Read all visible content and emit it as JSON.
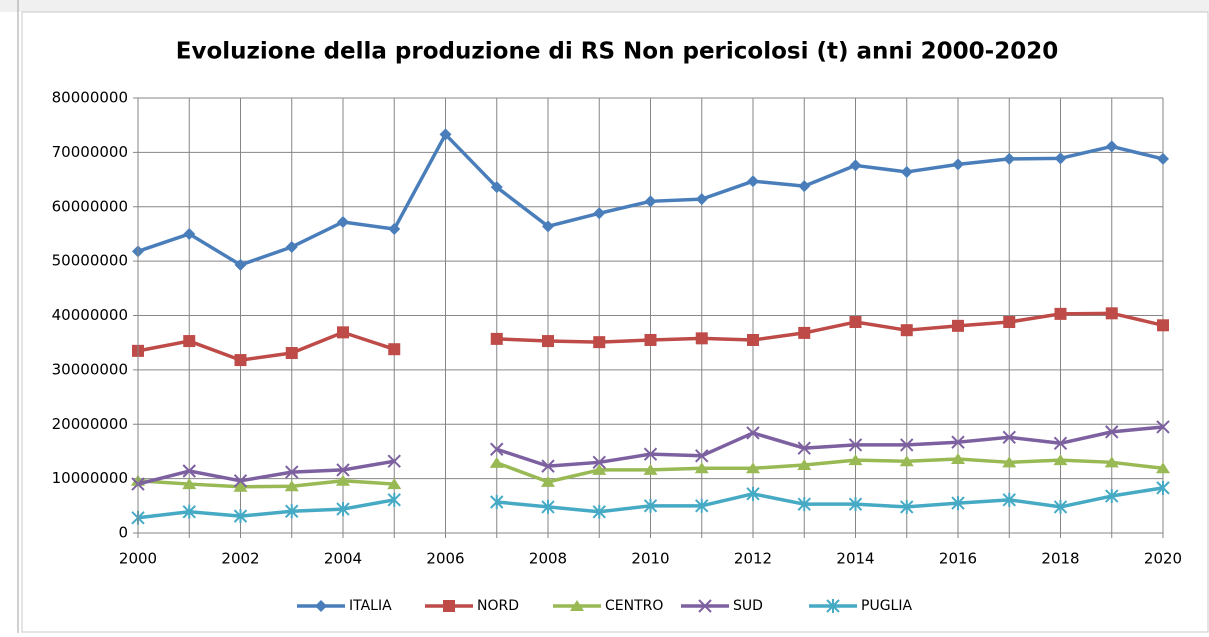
{
  "chart_data": {
    "type": "line",
    "title": "Evoluzione della produzione di RS Non pericolosi (t) anni 2000-2020",
    "categories": [
      "2000",
      null,
      "2002",
      null,
      "2004",
      null,
      "2006",
      null,
      "2008",
      null,
      "2010",
      null,
      "2012",
      null,
      "2014",
      null,
      "2016",
      null,
      "2018",
      null,
      "2020"
    ],
    "ylim": [
      0,
      80000000
    ],
    "yticks": [
      0,
      10000000,
      20000000,
      30000000,
      40000000,
      50000000,
      60000000,
      70000000,
      80000000
    ],
    "grid": true,
    "legend": "bottom",
    "series": [
      {
        "name": "ITALIA",
        "color": "#4a7ebb",
        "marker": "diamond",
        "values": [
          51800000,
          55000000,
          49300000,
          52600000,
          57200000,
          55900000,
          73300000,
          63600000,
          56400000,
          58800000,
          61000000,
          61400000,
          64700000,
          63800000,
          67600000,
          66400000,
          67800000,
          68800000,
          68900000,
          71100000,
          68800000
        ]
      },
      {
        "name": "NORD",
        "color": "#be4b48",
        "marker": "square",
        "values": [
          33500000,
          35300000,
          31800000,
          33100000,
          36900000,
          33800000,
          null,
          35700000,
          35300000,
          35100000,
          35500000,
          35800000,
          35500000,
          36800000,
          38800000,
          37300000,
          38100000,
          38800000,
          40300000,
          40400000,
          38200000
        ]
      },
      {
        "name": "CENTRO",
        "color": "#98b954",
        "marker": "triangle",
        "values": [
          9600000,
          9000000,
          8500000,
          8600000,
          9600000,
          9000000,
          null,
          12900000,
          9400000,
          11600000,
          11600000,
          11900000,
          11900000,
          12500000,
          13400000,
          13200000,
          13600000,
          13000000,
          13400000,
          13000000,
          11900000
        ]
      },
      {
        "name": "SUD",
        "color": "#7d60a0",
        "marker": "x",
        "values": [
          9000000,
          11400000,
          9600000,
          11200000,
          11600000,
          13200000,
          null,
          15400000,
          12300000,
          13000000,
          14500000,
          14200000,
          18400000,
          15600000,
          16200000,
          16200000,
          16700000,
          17600000,
          16500000,
          18600000,
          19500000
        ]
      },
      {
        "name": "PUGLIA",
        "color": "#46aac5",
        "marker": "star",
        "values": [
          2800000,
          3900000,
          3100000,
          4000000,
          4400000,
          6100000,
          null,
          5700000,
          4800000,
          3900000,
          5000000,
          5000000,
          7200000,
          5300000,
          5300000,
          4800000,
          5500000,
          6100000,
          4800000,
          6800000,
          8300000
        ]
      }
    ]
  }
}
